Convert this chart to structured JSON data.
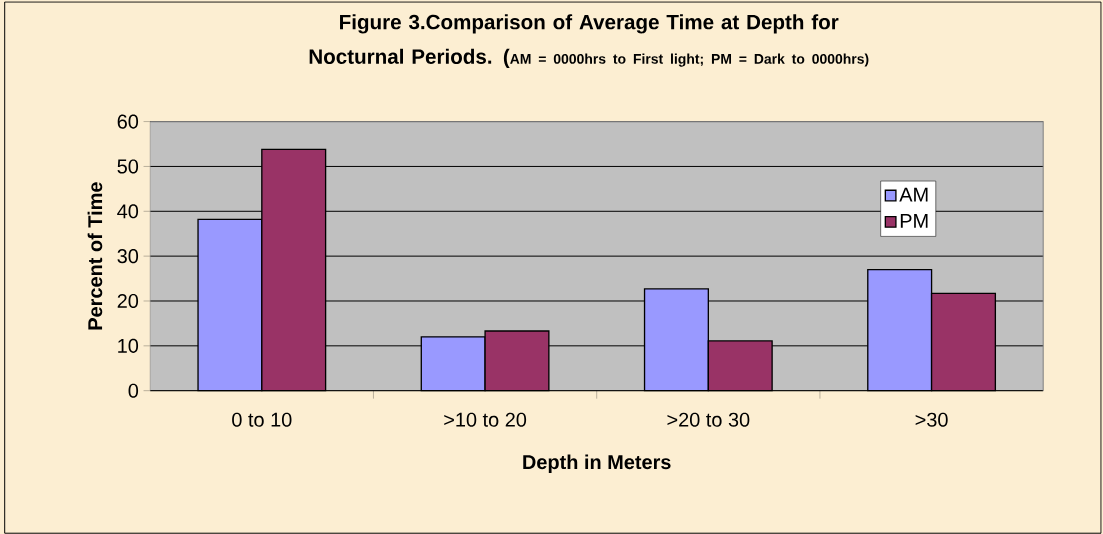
{
  "chart_data": {
    "type": "bar",
    "title": "Figure 3.Comparison of Average Time at Depth for Nocturnal Periods. (",
    "subtitle": "AM = 0000hrs to First light; PM = Dark to 0000hrs)",
    "xlabel": "Depth in Meters",
    "ylabel": "Percent of Time",
    "categories": [
      "0 to 10",
      ">10 to 20",
      ">20 to 30",
      ">30"
    ],
    "series": [
      {
        "name": "AM",
        "color": "#9999ff",
        "values": [
          38.2,
          12.0,
          22.7,
          27.0
        ]
      },
      {
        "name": "PM",
        "color": "#993366",
        "values": [
          53.8,
          13.3,
          11.1,
          21.7
        ]
      }
    ],
    "ylim": [
      0,
      60
    ],
    "yticks": [
      0,
      10,
      20,
      30,
      40,
      50,
      60
    ],
    "grid": "y",
    "legend": "right"
  }
}
